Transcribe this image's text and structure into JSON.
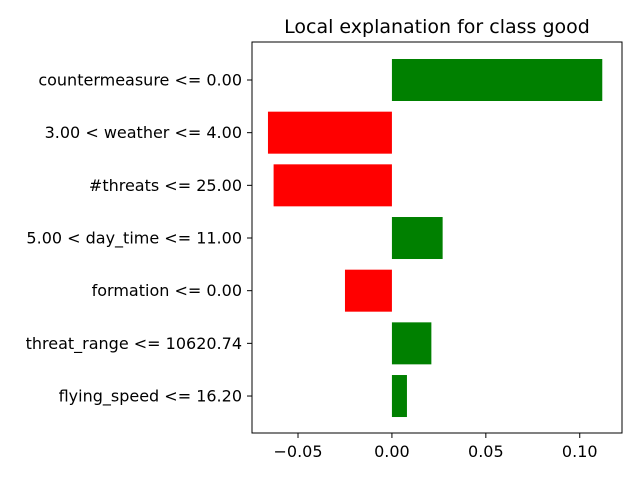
{
  "chart_data": {
    "type": "bar",
    "orientation": "horizontal",
    "title": "Local explanation for class good",
    "xlabel": "",
    "ylabel": "",
    "xlim": [
      -0.0745,
      0.1225
    ],
    "x_ticks": [
      -0.05,
      0.0,
      0.05,
      0.1
    ],
    "x_tick_labels": [
      "−0.05",
      "0.00",
      "0.05",
      "0.10"
    ],
    "grid": false,
    "categories": [
      "countermeasure <= 0.00",
      "3.00 < weather <= 4.00",
      "#threats <= 25.00",
      "5.00 < day_time <= 11.00",
      "formation <= 0.00",
      "threat_range <= 10620.74",
      "flying_speed <= 16.20"
    ],
    "values": [
      0.112,
      -0.066,
      -0.063,
      0.027,
      -0.025,
      0.021,
      0.008
    ],
    "colors": {
      "positive": "#008000",
      "negative": "#ff0000"
    }
  }
}
